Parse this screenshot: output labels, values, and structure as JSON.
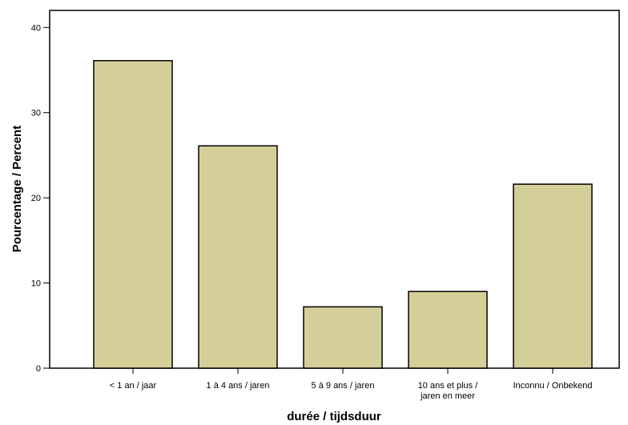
{
  "chart_data": {
    "type": "bar",
    "categories": [
      "< 1 an / jaar",
      "1 à 4 ans / jaren",
      "5 à 9 ans / jaren",
      "10 ans et plus / jaren en meer",
      "Inconnu / Onbekend"
    ],
    "category_lines": [
      [
        "< 1 an / jaar"
      ],
      [
        "1 à 4 ans / jaren"
      ],
      [
        "5 à 9 ans / jaren"
      ],
      [
        "10 ans et plus /",
        "jaren en meer"
      ],
      [
        "Inconnu / Onbekend"
      ]
    ],
    "values": [
      36.1,
      26.1,
      7.2,
      9.0,
      21.6
    ],
    "xlabel": "durée / tijdsduur",
    "ylabel": "Pourcentage / Percent",
    "ylim": [
      0,
      42
    ],
    "yticks": [
      0,
      10,
      20,
      30,
      40
    ],
    "bar_color": "#d4cf98",
    "bar_stroke": "#000000",
    "grid": false
  }
}
